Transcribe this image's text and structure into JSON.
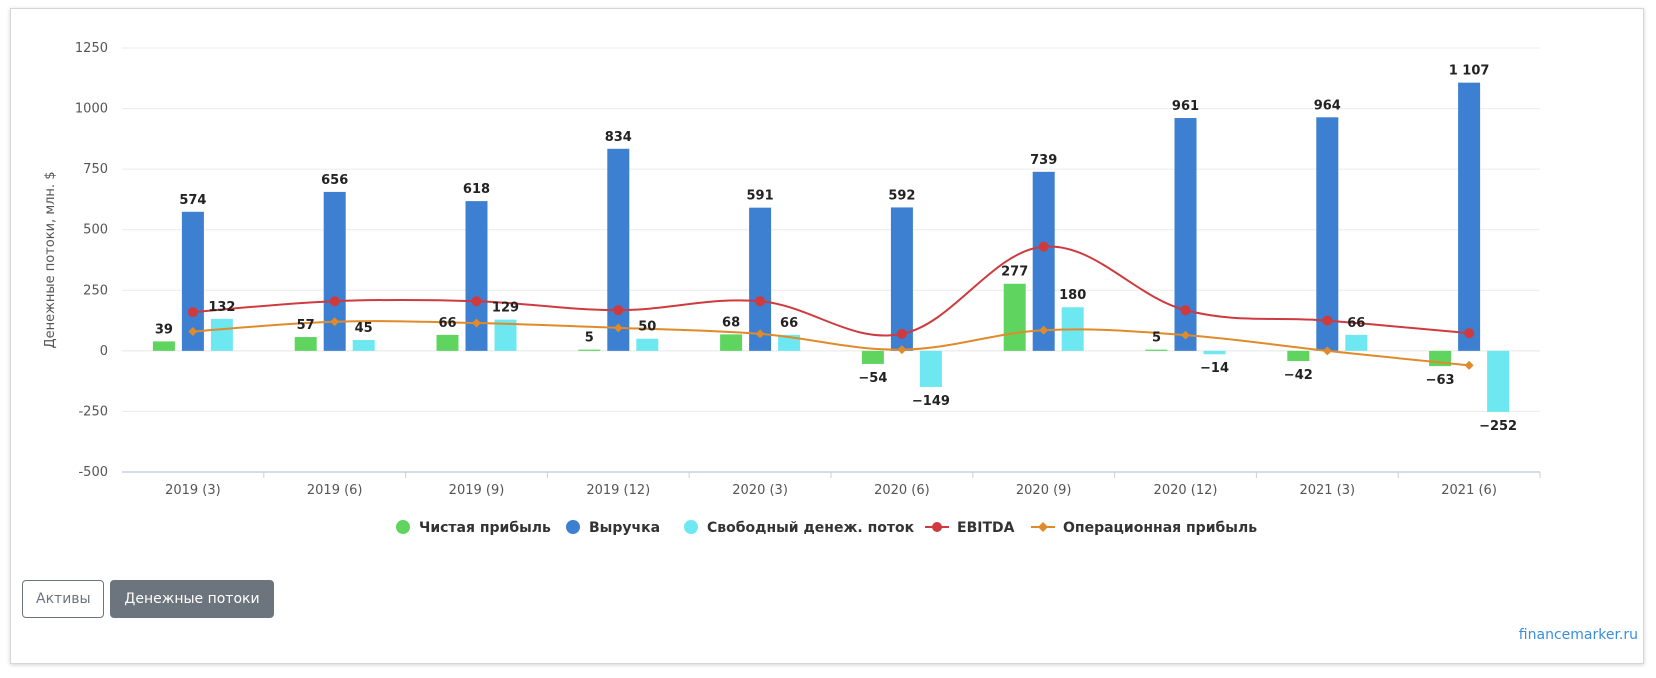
{
  "chart_data": {
    "type": "bar",
    "ylabel": "Денежные потоки, млн. $",
    "ylim": [
      -500,
      1250
    ],
    "yticks": [
      -500,
      -250,
      0,
      250,
      500,
      750,
      1000,
      1250
    ],
    "categories": [
      "2019 (3)",
      "2019 (6)",
      "2019 (9)",
      "2019 (12)",
      "2020 (3)",
      "2020 (6)",
      "2020 (9)",
      "2020 (12)",
      "2021 (3)",
      "2021 (6)"
    ],
    "series": [
      {
        "name": "Чистая прибыль",
        "kind": "bar",
        "color": "#5fd55f",
        "values": [
          39,
          57,
          66,
          5,
          68,
          -54,
          277,
          5,
          -42,
          -63
        ]
      },
      {
        "name": "Выручка",
        "kind": "bar",
        "color": "#3d7fd1",
        "values": [
          574,
          656,
          618,
          834,
          591,
          592,
          739,
          961,
          964,
          1107
        ]
      },
      {
        "name": "Свободный денеж. поток",
        "kind": "bar",
        "color": "#6ee8f0",
        "values": [
          132,
          45,
          129,
          50,
          66,
          -149,
          180,
          -14,
          66,
          -252
        ]
      },
      {
        "name": "EBITDA",
        "kind": "line",
        "color": "#cf3a3f",
        "values": [
          160,
          205,
          205,
          168,
          205,
          70,
          430,
          168,
          125,
          73
        ]
      },
      {
        "name": "Операционная прибыль",
        "kind": "line",
        "color": "#e08a2a",
        "values": [
          80,
          120,
          115,
          95,
          70,
          5,
          85,
          65,
          0,
          -60
        ]
      }
    ],
    "data_labels": {
      "Чистая прибыль": [
        "39",
        "57",
        "66",
        "5",
        "68",
        "−54",
        "277",
        "5",
        "−42",
        "−63"
      ],
      "Выручка": [
        "574",
        "656",
        "618",
        "834",
        "591",
        "592",
        "739",
        "961",
        "964",
        "1 107"
      ],
      "Свободный денеж. поток": [
        "132",
        "45",
        "129",
        "50",
        "66",
        "−149",
        "180",
        "−14",
        "66",
        "−252"
      ]
    }
  },
  "buttons": [
    {
      "label": "Активы"
    },
    {
      "label": "Денежные потоки"
    }
  ],
  "credit": "financemarker.ru"
}
